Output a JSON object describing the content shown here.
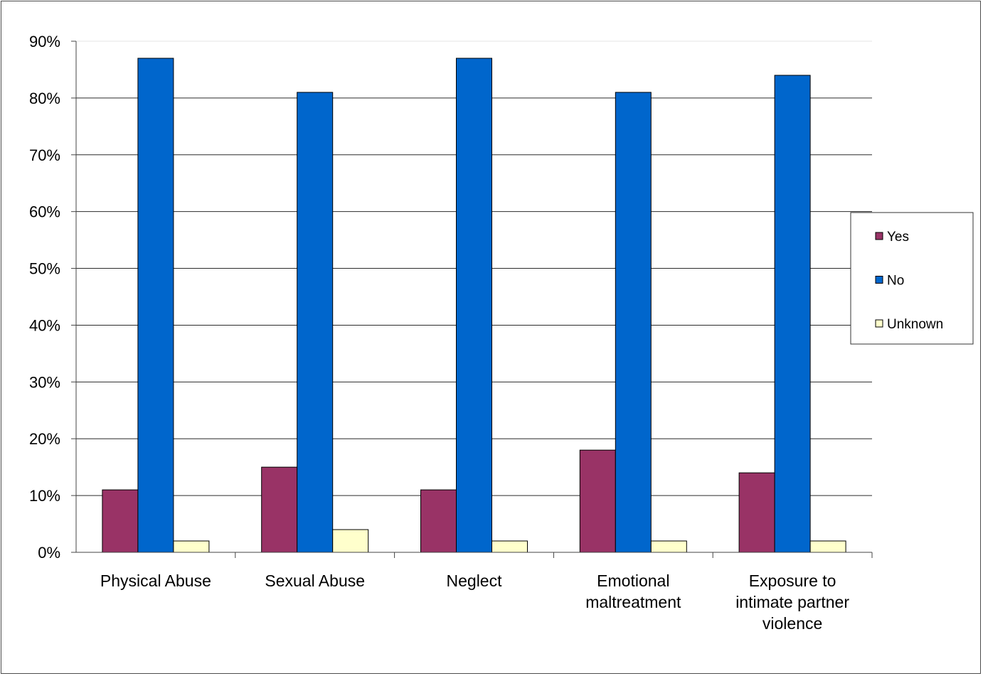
{
  "chart_data": {
    "type": "bar",
    "categories": [
      [
        "Physical Abuse"
      ],
      [
        "Sexual Abuse"
      ],
      [
        "Neglect"
      ],
      [
        "Emotional",
        "maltreatment"
      ],
      [
        "Exposure to",
        "intimate partner",
        "violence"
      ]
    ],
    "series": [
      {
        "name": "Yes",
        "color": "#993366",
        "values": [
          11,
          15,
          11,
          18,
          14
        ]
      },
      {
        "name": "No",
        "color": "#0066cc",
        "values": [
          87,
          81,
          87,
          81,
          84
        ]
      },
      {
        "name": "Unknown",
        "color": "#ffffcc",
        "values": [
          2,
          4,
          2,
          2,
          2
        ]
      }
    ],
    "y_ticks": [
      "0%",
      "10%",
      "20%",
      "30%",
      "40%",
      "50%",
      "60%",
      "70%",
      "80%",
      "90%"
    ],
    "ylim": [
      0,
      90
    ],
    "grid": true,
    "legend_position": "right",
    "title": "",
    "xlabel": "",
    "ylabel": ""
  }
}
